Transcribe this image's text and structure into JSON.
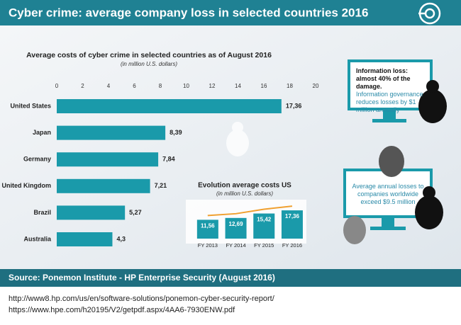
{
  "header": {
    "title": "Cyber crime: average company loss in selected countries 2016"
  },
  "chart_data": [
    {
      "type": "bar",
      "orientation": "horizontal",
      "title": "Average costs of cyber crime in selected countries as of August 2016",
      "subtitle": "(in million U.S. dollars)",
      "categories": [
        "United States",
        "Japan",
        "Germany",
        "United Kingdom",
        "Brazil",
        "Australia"
      ],
      "values": [
        17.36,
        8.39,
        7.84,
        7.21,
        5.27,
        4.3
      ],
      "value_labels": [
        "17,36",
        "8,39",
        "7,84",
        "7,21",
        "5,27",
        "4,3"
      ],
      "color": "#1a9aaa",
      "xlim": [
        0,
        20
      ],
      "xticks": [
        0,
        2,
        4,
        6,
        8,
        10,
        12,
        14,
        16,
        18,
        20
      ]
    },
    {
      "type": "bar",
      "orientation": "vertical",
      "title": "Evolution average costs US",
      "subtitle": "(in million U.S. dollars)",
      "categories": [
        "FY 2013",
        "FY 2014",
        "FY 2015",
        "FY 2016"
      ],
      "values": [
        11.56,
        12.69,
        15.42,
        17.36
      ],
      "value_labels": [
        "11,56",
        "12,69",
        "15,42",
        "17,36"
      ],
      "color": "#1a9aaa",
      "line_color": "#f0a030",
      "ylim": [
        0,
        20
      ]
    }
  ],
  "annotations": [
    {
      "bold": "Information loss: almost 40% of the damage.",
      "text": "Information governance reduces losses by $1 million annually"
    },
    {
      "text": "Average annual losses to companies worldwide exceed $9.5 million"
    }
  ],
  "footer": {
    "source": "Source: Ponemon Institute - HP Enterprise Security (August 2016)",
    "urls": [
      "http://www8.hp.com/us/en/software-solutions/ponemon-cyber-security-report/",
      "https://www.hpe.com/h20195/V2/getpdf.aspx/4AA6-7930ENW.pdf"
    ]
  }
}
